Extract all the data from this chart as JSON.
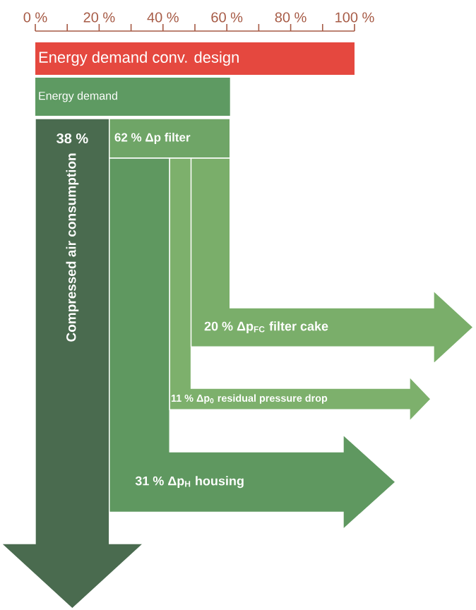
{
  "chart_data": [
    {
      "type": "bar",
      "orientation": "horizontal",
      "xlim": [
        0,
        100
      ],
      "xticks": [
        {
          "value": 0,
          "label": "0 %"
        },
        {
          "value": 10,
          "label": null
        },
        {
          "value": 20,
          "label": "20 %"
        },
        {
          "value": 30,
          "label": null
        },
        {
          "value": 40,
          "label": "40 %"
        },
        {
          "value": 50,
          "label": null
        },
        {
          "value": 60,
          "label": "60 %"
        },
        {
          "value": 70,
          "label": null
        },
        {
          "value": 80,
          "label": "80 %"
        },
        {
          "value": 90,
          "label": null
        },
        {
          "value": 100,
          "label": "100 %"
        }
      ],
      "categories": [
        "Energy demand conv. design",
        "Energy demand"
      ],
      "values": [
        100,
        61
      ],
      "colors": [
        "#e5483f",
        "#5e9a62"
      ]
    },
    {
      "type": "other",
      "categories": [
        "Compressed air consumption",
        "Δp filter",
        "Δp$_{FC}$ filter cake",
        "Δp$_{0}$ residual pressure drop",
        "Δp$_{H}$ housing"
      ],
      "values": [
        38,
        62,
        20,
        11,
        31
      ],
      "value_labels": [
        "38 %",
        "62 %",
        "20 %",
        "11 %",
        "31 %"
      ],
      "colors": [
        "#4a6b4f",
        "#6fa567",
        "#7aae6a",
        "#7db06c",
        "#5f9860"
      ]
    }
  ]
}
